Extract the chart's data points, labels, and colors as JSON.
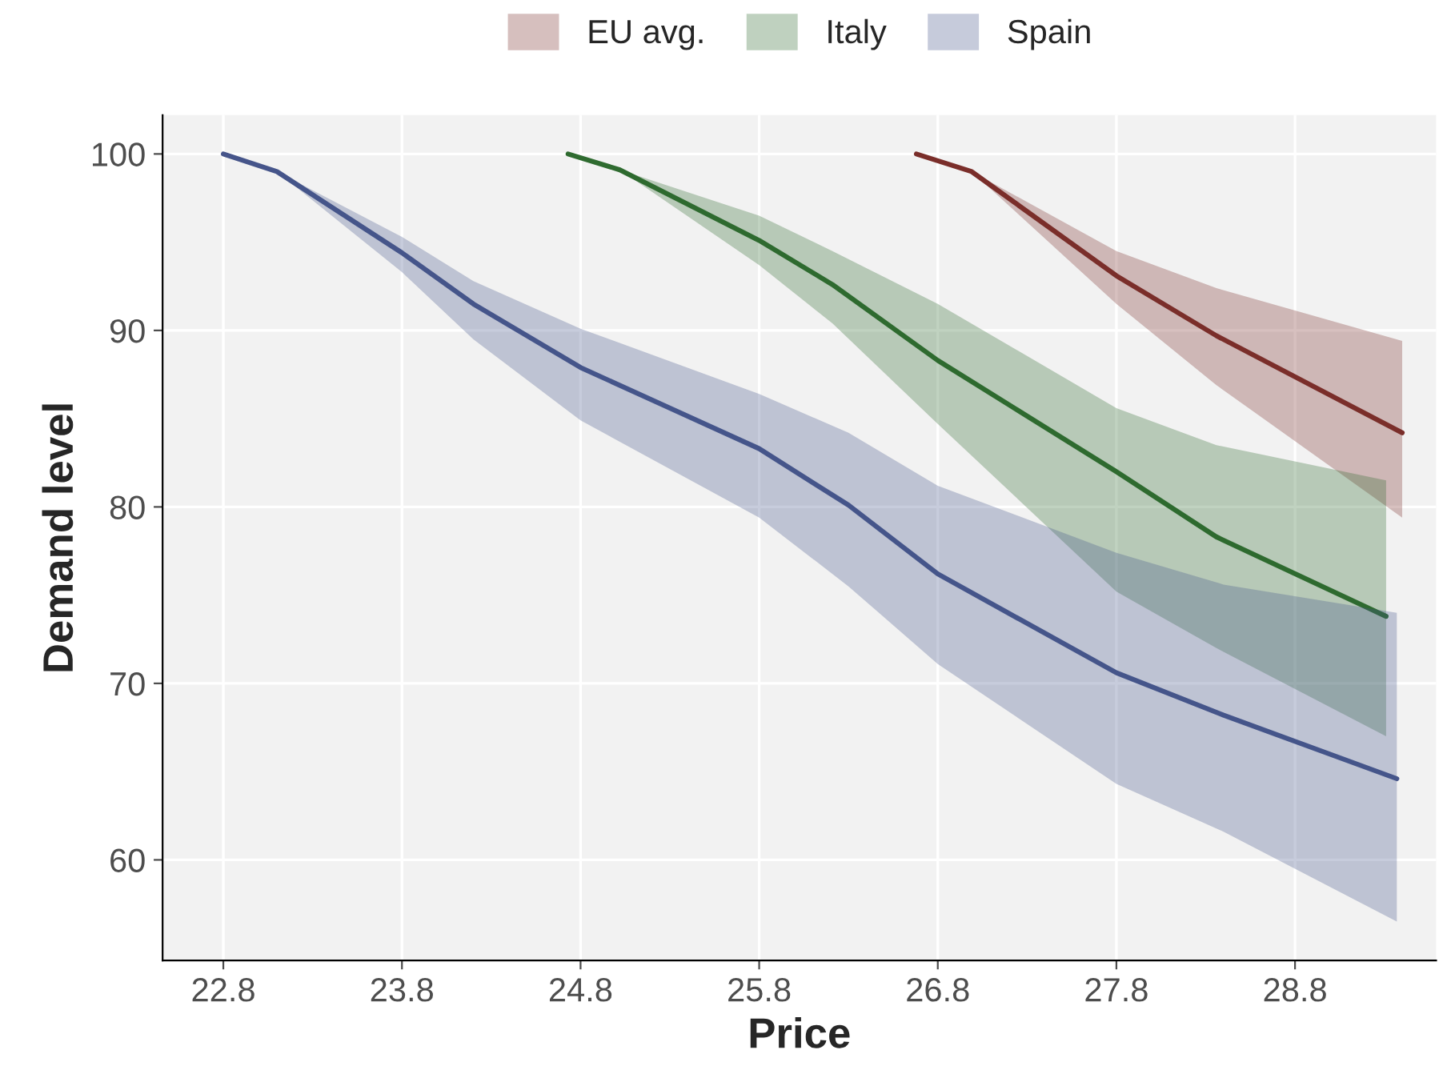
{
  "chart_data": {
    "type": "line",
    "xlabel": "Price",
    "ylabel": "Demand level",
    "xlim": [
      22.46,
      29.59
    ],
    "ylim": [
      54.3,
      102.2
    ],
    "xticks": [
      22.8,
      23.8,
      24.8,
      25.8,
      26.8,
      27.8,
      28.8
    ],
    "yticks": [
      60,
      70,
      80,
      90,
      100
    ],
    "grid": true,
    "legend": "top",
    "line_style": "solid",
    "marker": "none",
    "series": [
      {
        "name": "EU avg.",
        "color": "#7a2e2a",
        "x": [
          26.68,
          26.99,
          27.8,
          28.36,
          29.4
        ],
        "values": [
          100,
          99,
          93.1,
          89.7,
          84.2
        ],
        "lower": [
          100,
          99,
          91.5,
          86.9,
          79.4
        ],
        "upper": [
          100,
          99,
          94.5,
          92.4,
          89.4
        ]
      },
      {
        "name": "Italy",
        "color": "#2f6b30",
        "x": [
          24.73,
          25.02,
          25.8,
          26.21,
          26.8,
          27.8,
          28.36,
          29.31
        ],
        "values": [
          100,
          99.1,
          95.1,
          92.6,
          88.3,
          82.0,
          78.3,
          73.8
        ],
        "lower": [
          100,
          99.1,
          93.7,
          90.4,
          84.7,
          75.2,
          72.0,
          67.0
        ],
        "upper": [
          100,
          99.1,
          96.5,
          94.5,
          91.5,
          85.6,
          83.5,
          81.5
        ]
      },
      {
        "name": "Spain",
        "color": "#46558a",
        "x": [
          22.8,
          23.1,
          23.8,
          24.2,
          24.8,
          25.8,
          26.3,
          26.8,
          27.8,
          28.4,
          29.37
        ],
        "values": [
          100,
          99,
          94.4,
          91.5,
          87.9,
          83.3,
          80.1,
          76.2,
          70.6,
          68.2,
          64.6
        ],
        "lower": [
          100,
          99,
          93.3,
          89.5,
          84.9,
          79.4,
          75.5,
          71.1,
          64.3,
          61.6,
          56.5
        ],
        "upper": [
          100,
          99,
          95.3,
          92.8,
          90.1,
          86.4,
          84.2,
          81.2,
          77.4,
          75.6,
          74.0
        ]
      }
    ]
  }
}
